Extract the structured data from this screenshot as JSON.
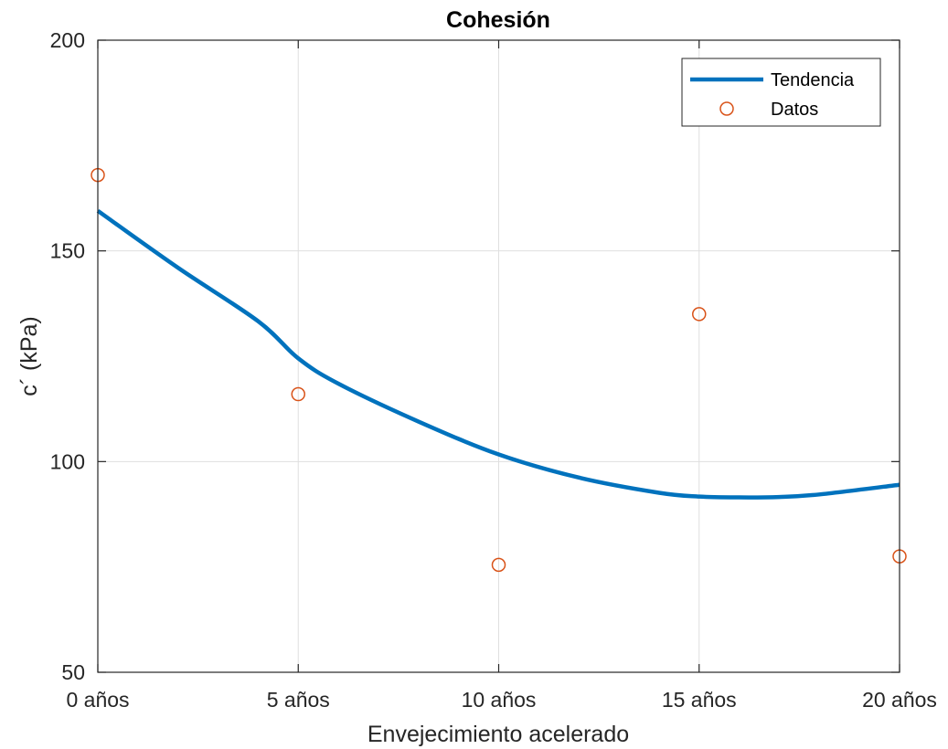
{
  "chart_data": {
    "type": "line",
    "title": "Cohesión",
    "xlabel": "Envejecimiento acelerado",
    "ylabel": "c´ (kPa)",
    "x_categories": [
      "0 años",
      "5 años",
      "10 años",
      "15 años",
      "20 años"
    ],
    "x_values": [
      0,
      5,
      10,
      15,
      20
    ],
    "xlim": [
      0,
      20
    ],
    "ylim": [
      50,
      200
    ],
    "yticks": [
      50,
      100,
      150,
      200
    ],
    "grid": true,
    "legend_position": "top-right",
    "series": [
      {
        "name": "Tendencia",
        "style": "line",
        "color": "#0072BD",
        "x": [
          0,
          2,
          4,
          5,
          6,
          8,
          10,
          12,
          14,
          15,
          16,
          17,
          18,
          20
        ],
        "y": [
          159.5,
          146,
          133.3,
          124.5,
          118.5,
          109.5,
          101.7,
          96.2,
          92.6,
          91.7,
          91.5,
          91.6,
          92.2,
          94.5
        ]
      },
      {
        "name": "Datos",
        "style": "markers",
        "marker": "circle",
        "color": "#D95319",
        "x": [
          0,
          5,
          10,
          15,
          20
        ],
        "y": [
          168,
          116,
          75.5,
          135,
          77.5
        ]
      }
    ]
  }
}
